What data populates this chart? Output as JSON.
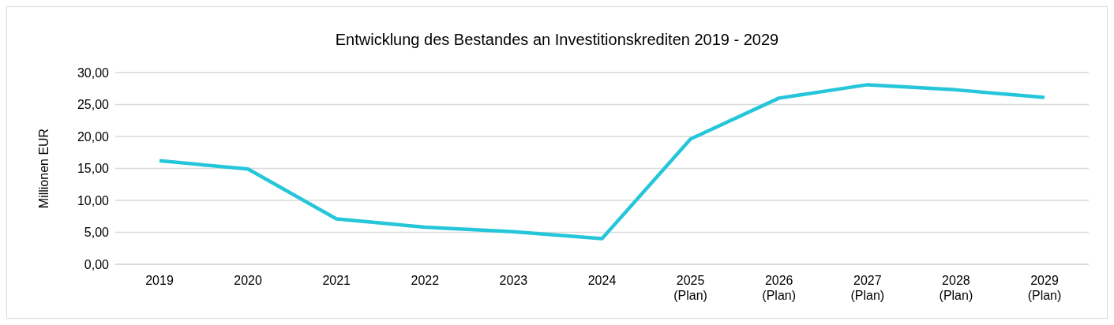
{
  "chart_data": {
    "type": "line",
    "title": "Entwicklung des Bestandes an Investitionskrediten 2019 - 2029",
    "ylabel": "Millionen EUR",
    "categories": [
      "2019",
      "2020",
      "2021",
      "2022",
      "2023",
      "2024",
      "2025\n(Plan)",
      "2026\n(Plan)",
      "2027\n(Plan)",
      "2028\n(Plan)",
      "2029\n(Plan)"
    ],
    "series": [
      {
        "color": "#26c6da",
        "values": [
          16.2,
          14.9,
          7.1,
          5.8,
          5.1,
          4.0,
          19.6,
          26.0,
          28.1,
          27.3,
          26.1
        ]
      }
    ],
    "ylim": [
      0,
      30
    ],
    "yticks": [
      {
        "value": 0,
        "label": "0,00"
      },
      {
        "value": 5,
        "label": "5,00"
      },
      {
        "value": 10,
        "label": "10,00"
      },
      {
        "value": 15,
        "label": "15,00"
      },
      {
        "value": 20,
        "label": "20,00"
      },
      {
        "value": 25,
        "label": "25,00"
      },
      {
        "value": 30,
        "label": "30,00"
      }
    ],
    "grid": "y",
    "legend": false,
    "marker": "none",
    "line_style": "solid"
  }
}
